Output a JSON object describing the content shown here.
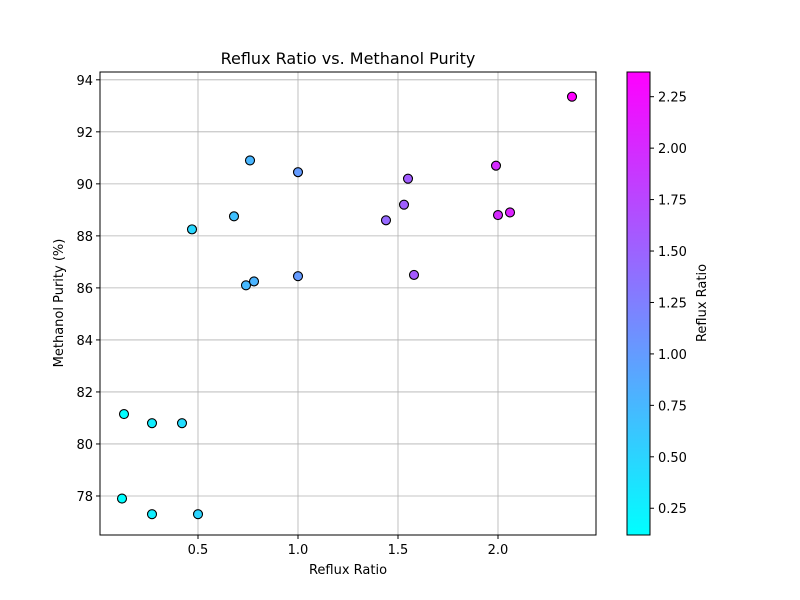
{
  "chart_data": {
    "type": "scatter",
    "title": "Reflux Ratio vs. Methanol Purity",
    "xlabel": "Reflux Ratio",
    "ylabel": "Methanol Purity (%)",
    "colorbar_label": "Reflux Ratio",
    "xlim": [
      0.01,
      2.49
    ],
    "ylim": [
      76.5,
      94.3
    ],
    "xticks": [
      0.5,
      1.0,
      1.5,
      2.0
    ],
    "xtick_labels": [
      "0.5",
      "1.0",
      "1.5",
      "2.0"
    ],
    "yticks": [
      78,
      80,
      82,
      84,
      86,
      88,
      90,
      92,
      94
    ],
    "ytick_labels": [
      "78",
      "80",
      "82",
      "84",
      "86",
      "88",
      "90",
      "92",
      "94"
    ],
    "colorbar_range": [
      0.12,
      2.37
    ],
    "colorbar_ticks": [
      0.25,
      0.5,
      0.75,
      1.0,
      1.25,
      1.5,
      1.75,
      2.0,
      2.25
    ],
    "colorbar_tick_labels": [
      "0.25",
      "0.50",
      "0.75",
      "1.00",
      "1.25",
      "1.50",
      "1.75",
      "2.00",
      "2.25"
    ],
    "colormap": "cool",
    "colormap_start": "#00ffff",
    "colormap_end": "#ff00ff",
    "marker_edge_color": "#000000",
    "grid": true,
    "points": [
      {
        "x": 0.12,
        "y": 77.9
      },
      {
        "x": 0.13,
        "y": 81.15
      },
      {
        "x": 0.27,
        "y": 80.8
      },
      {
        "x": 0.27,
        "y": 77.3
      },
      {
        "x": 0.42,
        "y": 80.8
      },
      {
        "x": 0.47,
        "y": 88.25
      },
      {
        "x": 0.5,
        "y": 77.3
      },
      {
        "x": 0.68,
        "y": 88.75
      },
      {
        "x": 0.74,
        "y": 86.1
      },
      {
        "x": 0.76,
        "y": 90.9
      },
      {
        "x": 0.78,
        "y": 86.25
      },
      {
        "x": 1.0,
        "y": 90.45
      },
      {
        "x": 1.0,
        "y": 86.45
      },
      {
        "x": 1.44,
        "y": 88.6
      },
      {
        "x": 1.53,
        "y": 89.2
      },
      {
        "x": 1.55,
        "y": 90.2
      },
      {
        "x": 1.58,
        "y": 86.5
      },
      {
        "x": 1.99,
        "y": 90.7
      },
      {
        "x": 2.0,
        "y": 88.8
      },
      {
        "x": 2.06,
        "y": 88.9
      },
      {
        "x": 2.37,
        "y": 93.35
      }
    ]
  }
}
